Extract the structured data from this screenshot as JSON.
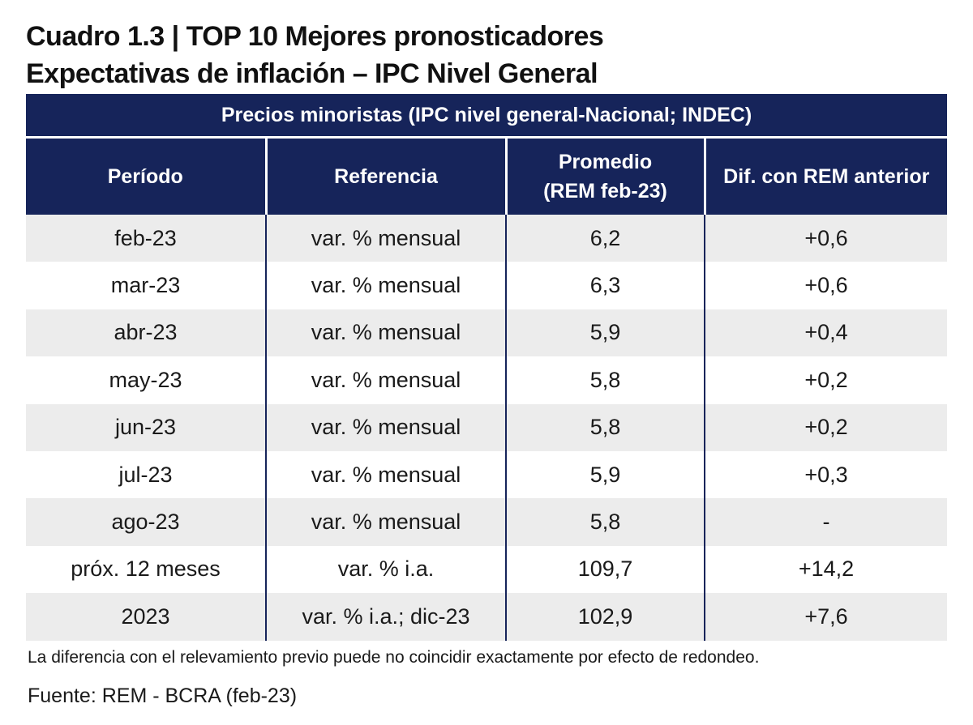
{
  "title": {
    "line1": "Cuadro 1.3 | TOP 10 Mejores pronosticadores",
    "line2": "Expectativas de inflación – IPC Nivel General"
  },
  "table": {
    "caption": "Precios minoristas (IPC nivel general-Nacional; INDEC)",
    "headers": {
      "periodo": "Período",
      "referencia": "Referencia",
      "promedio_line1": "Promedio",
      "promedio_line2": "(REM feb-23)",
      "dif": "Dif. con REM anterior"
    },
    "rows": [
      {
        "periodo": "feb-23",
        "referencia": "var. % mensual",
        "promedio": "6,2",
        "dif": "+0,6"
      },
      {
        "periodo": "mar-23",
        "referencia": "var. % mensual",
        "promedio": "6,3",
        "dif": "+0,6"
      },
      {
        "periodo": "abr-23",
        "referencia": "var. % mensual",
        "promedio": "5,9",
        "dif": "+0,4"
      },
      {
        "periodo": "may-23",
        "referencia": "var. % mensual",
        "promedio": "5,8",
        "dif": "+0,2"
      },
      {
        "periodo": "jun-23",
        "referencia": "var. % mensual",
        "promedio": "5,8",
        "dif": "+0,2"
      },
      {
        "periodo": "jul-23",
        "referencia": "var. % mensual",
        "promedio": "5,9",
        "dif": "+0,3"
      },
      {
        "periodo": "ago-23",
        "referencia": "var. % mensual",
        "promedio": "5,8",
        "dif": "-"
      },
      {
        "periodo": "próx. 12 meses",
        "referencia": "var. % i.a.",
        "promedio": "109,7",
        "dif": "+14,2"
      },
      {
        "periodo": "2023",
        "referencia": "var. % i.a.; dic-23",
        "promedio": "102,9",
        "dif": "+7,6"
      }
    ]
  },
  "note": "La diferencia con el relevamiento previo puede no coincidir exactamente por efecto de redondeo.",
  "source": "Fuente: REM - BCRA (feb-23)",
  "colors": {
    "header_bg": "#16245a",
    "header_text": "#ffffff",
    "row_alt_bg": "#ececec"
  }
}
